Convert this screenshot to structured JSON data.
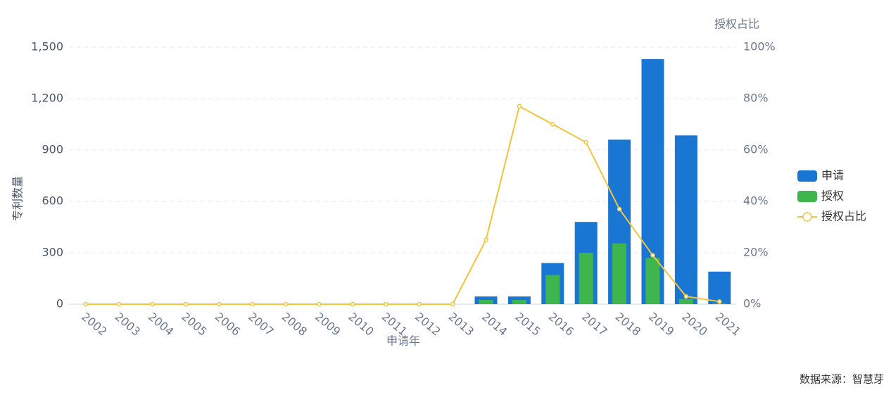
{
  "chart_data": {
    "type": "bar",
    "y_label": "专利数量",
    "x_label": "申请年",
    "y2_label": "授权占比",
    "source": "数据来源：智慧芽",
    "categories": [
      "2002",
      "2003",
      "2004",
      "2005",
      "2006",
      "2007",
      "2008",
      "2009",
      "2010",
      "2011",
      "2012",
      "2013",
      "2014",
      "2015",
      "2016",
      "2017",
      "2018",
      "2019",
      "2020",
      "2021"
    ],
    "series": [
      {
        "name": "申请",
        "type": "bar",
        "color": "#1976d2",
        "values": [
          0,
          0,
          0,
          0,
          0,
          0,
          0,
          0,
          0,
          0,
          0,
          0,
          45,
          45,
          240,
          480,
          960,
          1430,
          985,
          190
        ]
      },
      {
        "name": "授权",
        "type": "bar",
        "color": "#3fb54d",
        "values": [
          0,
          0,
          0,
          0,
          0,
          0,
          0,
          0,
          0,
          0,
          0,
          0,
          25,
          25,
          170,
          300,
          355,
          270,
          30,
          5
        ]
      },
      {
        "name": "授权占比",
        "type": "line",
        "axis": "y2",
        "color": "#f2c43d",
        "values": [
          0,
          0,
          0,
          0,
          0,
          0,
          0,
          0,
          0,
          0,
          0,
          0,
          25,
          77,
          70,
          63,
          37,
          19,
          3,
          1
        ]
      }
    ],
    "ylim": [
      0,
      1500
    ],
    "yticks": [
      0,
      300,
      600,
      900,
      {
        "value": 1200,
        "label": "1,200"
      },
      {
        "value": 1500,
        "label": "1,500"
      }
    ],
    "y2lim": [
      0,
      100
    ],
    "y2ticks": [
      {
        "value": 0,
        "label": "0%"
      },
      {
        "value": 20,
        "label": "20%"
      },
      {
        "value": 40,
        "label": "40%"
      },
      {
        "value": 60,
        "label": "60%"
      },
      {
        "value": 80,
        "label": "80%"
      },
      {
        "value": 100,
        "label": "100%"
      }
    ],
    "grid": true,
    "legend": "right"
  }
}
